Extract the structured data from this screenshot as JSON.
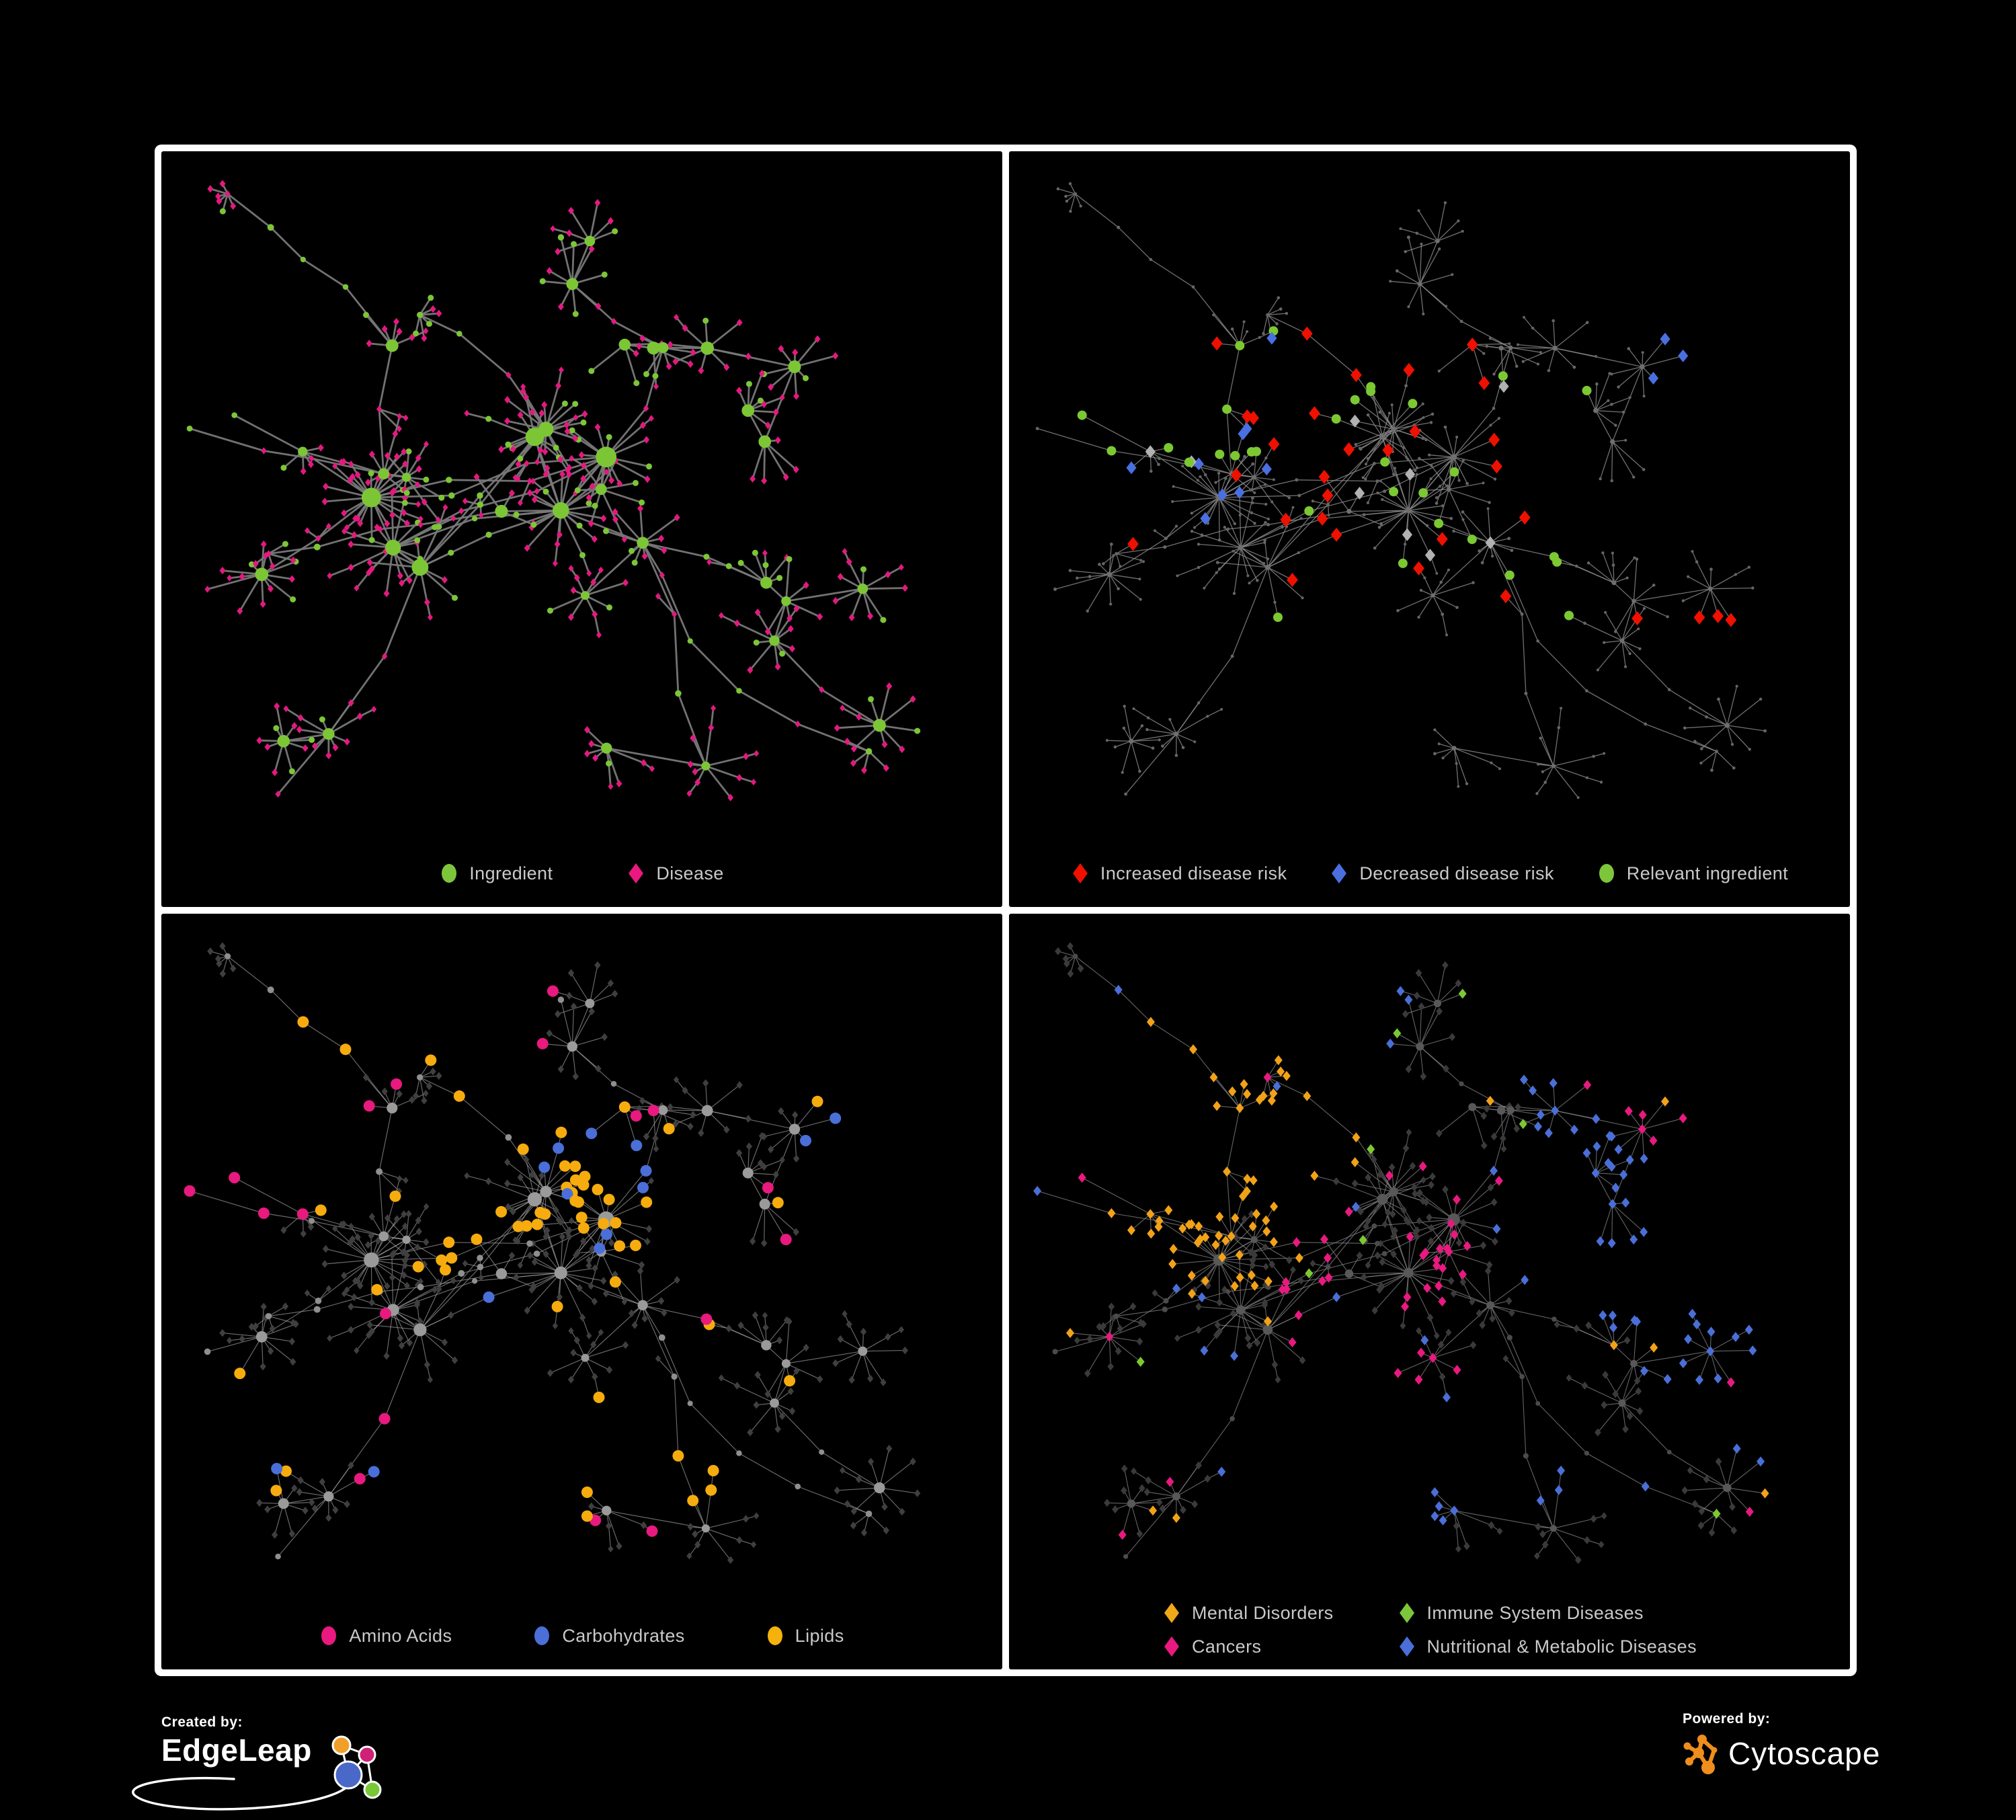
{
  "branding": {
    "created_by": "Created by:",
    "creator_name": "EdgeLeap",
    "powered_by": "Powered by:",
    "product_name": "Cytoscape"
  },
  "chart_data": {
    "type": "network",
    "views": 4,
    "description": "Four views of the same ingredient-disease association network rendered on black panels; circles are ingredients, diamonds are diseases; each view highlights a different annotation set.",
    "background": "#000000",
    "frame_color": "#ffffff",
    "topology": {
      "seed": 9,
      "superhubs": 7,
      "hubs": 27,
      "chains": 9
    },
    "panels": [
      {
        "id": "ingredient-disease",
        "legend": [
          {
            "label": "Ingredient",
            "shape": "circle",
            "color": "#7dc63b"
          },
          {
            "label": "Disease",
            "shape": "diamond",
            "color": "#e9197f"
          }
        ],
        "edge": {
          "color": "#787878",
          "width": 2.8,
          "opacity": 0.95
        },
        "style": {
          "superhub": {
            "shape": "circle",
            "color": "#7cc636",
            "r": [
              11,
              16
            ]
          },
          "hub": {
            "shape": "circle",
            "color": "#7cc636",
            "r": [
              6.5,
              10
            ]
          },
          "mid": {
            "shape": "circle",
            "color": "#7cc636",
            "r": [
              4,
              5
            ],
            "alt": {
              "fraction": 0.4,
              "shape": "diamond",
              "color": "#e31980",
              "s": 5.2
            }
          },
          "leaf": {
            "shape": "diamond",
            "color": "#e31980",
            "s": 5.6,
            "alt": {
              "fraction": 0.22,
              "shape": "circle",
              "color": "#7cc636",
              "r": 4.5
            }
          },
          "tip": {
            "shape": "diamond",
            "color": "#e31980",
            "s": 5
          }
        },
        "highlight_seed": 1,
        "highlights": []
      },
      {
        "id": "disease-risk",
        "legend": [
          {
            "label": "Increased disease risk",
            "shape": "diamond",
            "color": "#f01000"
          },
          {
            "label": "Decreased disease risk",
            "shape": "diamond",
            "color": "#4a6fe0"
          },
          {
            "label": "Relevant ingredient",
            "shape": "circle",
            "color": "#7dc63b"
          }
        ],
        "edge": {
          "color": "#8c8c8c",
          "width": 1.3,
          "opacity": 0.8
        },
        "style": {
          "superhub": {
            "shape": "circle",
            "color": "#6f6f6f",
            "r": [
              3.8,
              4.6
            ]
          },
          "hub": {
            "shape": "circle",
            "color": "#6f6f6f",
            "r": [
              3,
              3.8
            ]
          },
          "mid": {
            "shape": "circle",
            "color": "#666666",
            "r": [
              2.3,
              2.6
            ]
          },
          "leaf": {
            "shape": "circle",
            "color": "#666666",
            "r": [
              2,
              2.4
            ]
          },
          "tip": {
            "shape": "circle",
            "color": "#666666",
            "r": [
              1.9,
              2.2
            ]
          }
        },
        "highlight_seed": 21,
        "highlights": [
          {
            "shape": "diamond",
            "color": "#f01000",
            "size": 10.5,
            "clusters": [
              {
                "cx": 0.4,
                "cy": 0.46,
                "sd": 0.09,
                "n": 16
              },
              {
                "cx": 0.3,
                "cy": 0.35,
                "sd": 0.05,
                "n": 5
              },
              {
                "cx": 0.6,
                "cy": 0.45,
                "sd": 0.04,
                "n": 3
              },
              {
                "cx": 0.76,
                "cy": 0.74,
                "sd": 0.05,
                "n": 4
              },
              {
                "cx": 0.52,
                "cy": 0.7,
                "sd": 0.04,
                "n": 3
              }
            ]
          },
          {
            "shape": "diamond",
            "color": "#4a6fe0",
            "size": 9.5,
            "clusters": [
              {
                "cx": 0.23,
                "cy": 0.5,
                "sd": 0.045,
                "n": 6
              },
              {
                "cx": 0.33,
                "cy": 0.38,
                "sd": 0.03,
                "n": 3
              },
              {
                "cx": 0.92,
                "cy": 0.28,
                "sd": 0.018,
                "n": 3
              }
            ]
          },
          {
            "shape": "diamond",
            "color": "#b2b2b2",
            "size": 9.5,
            "clusters": [
              {
                "cx": 0.46,
                "cy": 0.52,
                "sd": 0.11,
                "n": 7
              },
              {
                "cx": 0.2,
                "cy": 0.4,
                "sd": 0.04,
                "n": 2
              }
            ]
          },
          {
            "shape": "circle",
            "color": "#7cc832",
            "size": 7,
            "clusters": [
              {
                "cx": 0.42,
                "cy": 0.42,
                "sd": 0.09,
                "n": 15
              },
              {
                "cx": 0.64,
                "cy": 0.63,
                "sd": 0.025,
                "n": 4
              },
              {
                "cx": 0.17,
                "cy": 0.34,
                "sd": 0.05,
                "n": 5
              },
              {
                "cx": 0.56,
                "cy": 0.54,
                "sd": 0.04,
                "n": 3
              },
              {
                "scatter": true,
                "n": 4
              }
            ]
          }
        ]
      },
      {
        "id": "macronutrients",
        "legend": [
          {
            "label": "Amino Acids",
            "shape": "circle",
            "color": "#e8197f"
          },
          {
            "label": "Carbohydrates",
            "shape": "circle",
            "color": "#4a6fd8"
          },
          {
            "label": "Lipids",
            "shape": "circle",
            "color": "#f6b20c"
          }
        ],
        "edge": {
          "color": "#9b9b9b",
          "width": 1.15,
          "opacity": 0.7
        },
        "style": {
          "superhub": {
            "shape": "circle",
            "color": "#9a9a9a",
            "r": [
              8.5,
              12.5
            ]
          },
          "hub": {
            "shape": "circle",
            "color": "#9a9a9a",
            "r": [
              6,
              8.5
            ]
          },
          "mid": {
            "shape": "circle",
            "color": "#8f8f8f",
            "r": [
              4,
              5
            ]
          },
          "leaf": {
            "shape": "diamond",
            "color": "#3f3f3f",
            "s": 5.8
          },
          "tip": {
            "shape": "diamond",
            "color": "#3f3f3f",
            "s": 5.2
          }
        },
        "highlight_seed": 31,
        "highlights": [
          {
            "shape": "circle",
            "color": "#f6ac0e",
            "size": 8.5,
            "clusters": [
              {
                "cx": 0.5,
                "cy": 0.43,
                "sd": 0.05,
                "n": 24
              },
              {
                "cx": 0.38,
                "cy": 0.53,
                "sd": 0.05,
                "n": 9
              },
              {
                "cx": 0.62,
                "cy": 0.85,
                "sd": 0.02,
                "n": 4
              },
              {
                "scatter": true,
                "n": 20
              }
            ]
          },
          {
            "shape": "circle",
            "color": "#4a6fd8",
            "size": 8.5,
            "clusters": [
              {
                "cx": 0.52,
                "cy": 0.4,
                "sd": 0.045,
                "n": 9
              },
              {
                "scatter": true,
                "n": 5
              }
            ]
          },
          {
            "shape": "circle",
            "color": "#e8197f",
            "size": 8.5,
            "clusters": [
              {
                "scatter": true,
                "n": 18
              }
            ]
          }
        ]
      },
      {
        "id": "disease-categories",
        "legend": [
          {
            "label": "Mental Disorders",
            "shape": "diamond",
            "color": "#f0a818"
          },
          {
            "label": "Cancers",
            "shape": "diamond",
            "color": "#e9197f"
          },
          {
            "label": "Immune System Diseases",
            "shape": "diamond",
            "color": "#7dc63b"
          },
          {
            "label": "Nutritional & Metabolic Diseases",
            "shape": "diamond",
            "color": "#4a6fd8"
          }
        ],
        "edge": {
          "color": "#858585",
          "width": 1.1,
          "opacity": 0.75
        },
        "style": {
          "superhub": {
            "shape": "circle",
            "color": "#585858",
            "r": [
              6.5,
              9.5
            ]
          },
          "hub": {
            "shape": "circle",
            "color": "#585858",
            "r": [
              5,
              6.5
            ]
          },
          "mid": {
            "shape": "circle",
            "color": "#4b4b4b",
            "r": [
              3.4,
              4.2
            ]
          },
          "leaf": {
            "shape": "diamond",
            "color": "#3a3a3a",
            "s": 6
          },
          "tip": {
            "shape": "diamond",
            "color": "#3a3a3a",
            "s": 5.5
          }
        },
        "highlight_seed": 41,
        "highlights": [
          {
            "shape": "diamond",
            "color": "#f2a218",
            "size": 7.5,
            "clusters": [
              {
                "cx": 0.24,
                "cy": 0.47,
                "sd": 0.06,
                "n": 48
              },
              {
                "cx": 0.3,
                "cy": 0.25,
                "sd": 0.06,
                "n": 12
              },
              {
                "scatter": true,
                "n": 12
              }
            ]
          },
          {
            "shape": "diamond",
            "color": "#e8197f",
            "size": 7.5,
            "clusters": [
              {
                "cx": 0.46,
                "cy": 0.52,
                "sd": 0.08,
                "n": 38
              },
              {
                "cx": 0.93,
                "cy": 0.22,
                "sd": 0.025,
                "n": 5
              },
              {
                "scatter": true,
                "n": 8
              }
            ]
          },
          {
            "shape": "diamond",
            "color": "#4a6fd8",
            "size": 7.5,
            "clusters": [
              {
                "cx": 0.8,
                "cy": 0.52,
                "sd": 0.045,
                "n": 18
              },
              {
                "cx": 0.86,
                "cy": 0.15,
                "sd": 0.06,
                "n": 10
              },
              {
                "cx": 0.7,
                "cy": 0.3,
                "sd": 0.06,
                "n": 10
              },
              {
                "cx": 0.55,
                "cy": 0.8,
                "sd": 0.06,
                "n": 8
              },
              {
                "cx": 0.9,
                "cy": 0.65,
                "sd": 0.04,
                "n": 6
              },
              {
                "scatter": true,
                "n": 22
              }
            ]
          },
          {
            "shape": "diamond",
            "color": "#7cc832",
            "size": 7.5,
            "clusters": [
              {
                "cx": 0.45,
                "cy": 0.4,
                "sd": 0.15,
                "n": 5
              },
              {
                "scatter": true,
                "n": 3
              }
            ]
          }
        ]
      }
    ]
  }
}
